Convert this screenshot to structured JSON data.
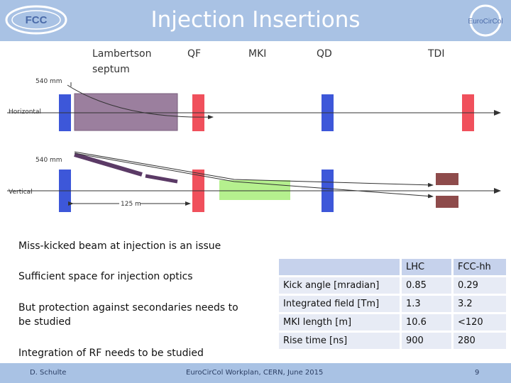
{
  "slide": {
    "title": "Injection Insertions",
    "logo_left_text": "FCC",
    "logo_left_sub": "",
    "logo_right_text": "EuroCirCol"
  },
  "diagram": {
    "labels": {
      "lambertson_line1": "Lambertson",
      "lambertson_line2": "septum",
      "qf": "QF",
      "mki": "MKI",
      "qd": "QD",
      "tdi": "TDI",
      "dist_h": "540 mm",
      "dist_v": "540 mm",
      "horizontal": "Horizontal",
      "vertical": "Vertical",
      "length": "125 m"
    },
    "colors": {
      "blue": "#3d57d9",
      "red": "#f0505c",
      "septum": "#9b7f9e",
      "mki": "#b5f08e",
      "tdi": "#8e4b4b",
      "beam": "#5b3a66"
    }
  },
  "bullets": [
    "Miss-kicked beam at injection is an issue",
    "Sufficient space for injection optics",
    "But protection against secondaries needs to be studied",
    "Integration of RF needs to be studied"
  ],
  "table": {
    "headers": [
      "",
      "LHC",
      "FCC-hh"
    ],
    "rows": [
      [
        "Kick angle [mradian]",
        "0.85",
        "0.29"
      ],
      [
        "Integrated field [Tm]",
        "1.3",
        "3.2"
      ],
      [
        "MKI length [m]",
        "10.6",
        "<120"
      ],
      [
        "Rise time [ns]",
        "900",
        "280"
      ]
    ]
  },
  "footer": {
    "author": "D. Schulte",
    "event": "EuroCirCol Workplan, CERN, June 2015",
    "page": "9"
  }
}
